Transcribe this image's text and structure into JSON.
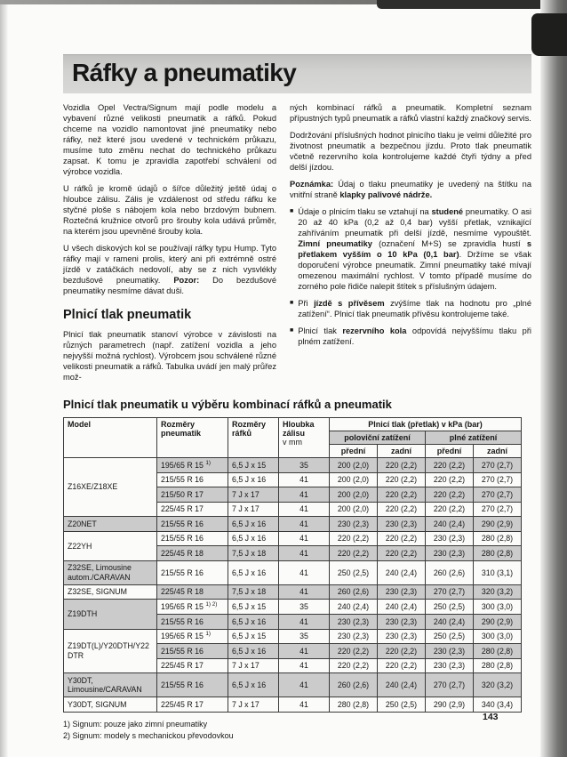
{
  "page": {
    "title": "Ráfky a pneumatiky",
    "page_number": "143"
  },
  "glyphs": {
    "bullet": "■"
  },
  "colors": {
    "row_shade": "#cbcbcb",
    "table_border": "#3a3a3a",
    "title_bar_bg": "#d2d2d0",
    "scan_edge_dark": "#1e1e1d"
  },
  "intro_left": {
    "p1": "Vozidla Opel Vectra/Signum mají podle modelu a vybavení různé velikosti pneumatik a ráfků. Pokud chceme na vozidlo namontovat jiné pneumatiky nebo ráfky, než které jsou uvedené v technickém průkazu, musíme tuto změnu nechat do technického průkazu zapsat. K tomu je zpravidla zapotřebí schválení od výrobce vozidla.",
    "p2": "U ráfků je kromě údajů o šířce důležitý ještě údaj o hloubce zálisu. Zális je vzdálenost od středu ráfku ke styčné ploše s nábojem kola nebo brzdovým bubnem. Roztečná kružnice otvorů pro šrouby kola udává průměr, na kterém jsou upevněné šrouby kola.",
    "p3_segments": [
      {
        "t": "U všech diskových kol se používají ráfky typu Hump. Tyto ráfky mají v rameni prolis, který ani při extrémně ostré jízdě v zatáčkách nedovolí, aby se z nich vysvlékly bezdušové pneumatiky. "
      },
      {
        "t": "Pozor:",
        "b": true
      },
      {
        "t": " Do bezdušové pneumatiky nesmíme dávat duši."
      }
    ],
    "heading2": "Plnicí tlak pneumatik",
    "p4": "Plnicí tlak pneumatik stanoví výrobce v závislosti na různých parametrech (např. zatížení vozidla a jeho nejvyšší možná rychlost). Výrobcem jsou schválené různé velikosti pneumatik a ráfků. Tabulka uvádí jen malý průřez mož-"
  },
  "intro_right": {
    "p5": "ných kombinací ráfků a pneumatik. Kompletní seznam přípustných typů pneumatik a ráfků vlastní každý značkový servis.",
    "p6": "Dodržování příslušných hodnot plnicího tlaku je velmi důležité pro životnost pneumatik a bezpečnou jízdu. Proto tlak pneumatik včetně rezervního kola kontrolujeme každé čtyři týdny a před delší jízdou.",
    "note_segments": [
      {
        "t": "Poznámka:",
        "b": true
      },
      {
        "t": " Údaj o tlaku pneumatiky je uvedený na štítku na vnitřní straně "
      },
      {
        "t": "klapky palivové nádrže.",
        "b": true
      }
    ],
    "bullets": [
      {
        "segments": [
          {
            "t": "Údaje o plnicím tlaku se vztahují na "
          },
          {
            "t": "studené",
            "b": true
          },
          {
            "t": " pneumatiky. O asi 20 až 40 kPa (0,2 až 0,4 bar) vyšší přetlak, vznikající zahříváním pneumatik při delší jízdě, nesmíme vypouštět. "
          },
          {
            "t": "Zimní pneumatiky",
            "b": true
          },
          {
            "t": " (označení M+S) se zpravidla hustí "
          },
          {
            "t": "s přetlakem vyšším o 10 kPa (0,1 bar)",
            "b": true
          },
          {
            "t": ". Držíme se však doporučení výrobce pneumatik. Zimní pneumatiky také mívají omezenou maximální rychlost. V tomto případě musíme do zorného pole řidiče nalepit štítek s příslušným údajem."
          }
        ]
      },
      {
        "segments": [
          {
            "t": "Při "
          },
          {
            "t": "jízdě s přívěsem",
            "b": true
          },
          {
            "t": " zvýšíme tlak na hodnotu pro „plné zatížení“. Plnicí tlak pneumatik přívěsu kontrolujeme také."
          }
        ]
      },
      {
        "segments": [
          {
            "t": "Plnicí tlak "
          },
          {
            "t": "rezervního kola",
            "b": true
          },
          {
            "t": " odpovídá nejvyššímu tlaku při plném zatížení."
          }
        ]
      }
    ]
  },
  "table": {
    "heading": "Plnicí tlak pneumatik u výběru kombinací ráfků a pneumatik",
    "headers": {
      "model": "Model",
      "tire": "Rozměry pneumatik",
      "rim": "Rozměry ráfků",
      "depth_l1": "Hloubka zálisu",
      "depth_l2": "v mm",
      "pressure": "Plnicí tlak (přetlak) v kPa (bar)",
      "half_load": "poloviční zatížení",
      "full_load": "plné zatížení",
      "front": "přední",
      "rear": "zadní"
    },
    "groups": [
      {
        "model": "Z16XE/Z18XE",
        "rows": [
          {
            "tire": "195/65 R 15",
            "note": "1)",
            "rim": "6,5 J x 15",
            "depth": "35",
            "half_front": "200 (2,0)",
            "half_rear": "220 (2,2)",
            "full_front": "220 (2,2)",
            "full_rear": "270 (2,7)"
          },
          {
            "tire": "215/55 R 16",
            "rim": "6,5 J x 16",
            "depth": "41",
            "half_front": "200 (2,0)",
            "half_rear": "220 (2,2)",
            "full_front": "220 (2,2)",
            "full_rear": "270 (2,7)"
          },
          {
            "tire": "215/50 R 17",
            "rim": "7 J x 17",
            "depth": "41",
            "half_front": "200 (2,0)",
            "half_rear": "220 (2,2)",
            "full_front": "220 (2,2)",
            "full_rear": "270 (2,7)"
          },
          {
            "tire": "225/45 R 17",
            "rim": "7 J x 17",
            "depth": "41",
            "half_front": "200 (2,0)",
            "half_rear": "220 (2,2)",
            "full_front": "220 (2,2)",
            "full_rear": "270 (2,7)"
          }
        ]
      },
      {
        "model": "Z20NET",
        "rows": [
          {
            "tire": "215/55 R 16",
            "rim": "6,5 J x 16",
            "depth": "41",
            "half_front": "230 (2,3)",
            "half_rear": "230 (2,3)",
            "full_front": "240 (2,4)",
            "full_rear": "290 (2,9)"
          }
        ]
      },
      {
        "model": "Z22YH",
        "rows": [
          {
            "tire": "215/55 R 16",
            "rim": "6,5 J x 16",
            "depth": "41",
            "half_front": "220 (2,2)",
            "half_rear": "220 (2,2)",
            "full_front": "230 (2,3)",
            "full_rear": "280 (2,8)"
          },
          {
            "tire": "225/45 R 18",
            "rim": "7,5 J x 18",
            "depth": "41",
            "half_front": "220 (2,2)",
            "half_rear": "220 (2,2)",
            "full_front": "230 (2,3)",
            "full_rear": "280 (2,8)"
          }
        ]
      },
      {
        "model": "Z32SE, Limousine autom./CARAVAN",
        "rows": [
          {
            "tire": "215/55 R 16",
            "rim": "6,5 J x 16",
            "depth": "41",
            "half_front": "250 (2,5)",
            "half_rear": "240 (2,4)",
            "full_front": "260 (2,6)",
            "full_rear": "310 (3,1)"
          }
        ]
      },
      {
        "model": "Z32SE, SIGNUM",
        "rows": [
          {
            "tire": "225/45 R 18",
            "rim": "7,5 J x 18",
            "depth": "41",
            "half_front": "260 (2,6)",
            "half_rear": "230 (2,3)",
            "full_front": "270 (2,7)",
            "full_rear": "320 (3,2)"
          }
        ]
      },
      {
        "model": "Z19DTH",
        "rows": [
          {
            "tire": "195/65 R 15",
            "note": "1) 2)",
            "rim": "6,5 J x 15",
            "depth": "35",
            "half_front": "240 (2,4)",
            "half_rear": "240 (2,4)",
            "full_front": "250 (2,5)",
            "full_rear": "300 (3,0)"
          },
          {
            "tire": "215/55 R 16",
            "rim": "6,5 J x 16",
            "depth": "41",
            "half_front": "230 (2,3)",
            "half_rear": "230 (2,3)",
            "full_front": "240 (2,4)",
            "full_rear": "290 (2,9)"
          }
        ]
      },
      {
        "model": "Z19DT(L)/Y20DTH/Y22DTR",
        "rows": [
          {
            "tire": "195/65 R 15",
            "note": "1)",
            "rim": "6,5 J x 15",
            "depth": "35",
            "half_front": "230 (2,3)",
            "half_rear": "230 (2,3)",
            "full_front": "250 (2,5)",
            "full_rear": "300 (3,0)"
          },
          {
            "tire": "215/55 R 16",
            "rim": "6,5 J x 16",
            "depth": "41",
            "half_front": "220 (2,2)",
            "half_rear": "220 (2,2)",
            "full_front": "230 (2,3)",
            "full_rear": "280 (2,8)"
          },
          {
            "tire": "225/45 R 17",
            "rim": "7 J x 17",
            "depth": "41",
            "half_front": "220 (2,2)",
            "half_rear": "220 (2,2)",
            "full_front": "230 (2,3)",
            "full_rear": "280 (2,8)"
          }
        ]
      },
      {
        "model": "Y30DT, Limousine/CARAVAN",
        "rows": [
          {
            "tire": "215/55 R 16",
            "rim": "6,5 J x 16",
            "depth": "41",
            "half_front": "260 (2,6)",
            "half_rear": "240 (2,4)",
            "full_front": "270 (2,7)",
            "full_rear": "320 (3,2)"
          }
        ]
      },
      {
        "model": "Y30DT, SIGNUM",
        "rows": [
          {
            "tire": "225/45 R 17",
            "rim": "7 J x 17",
            "depth": "41",
            "half_front": "280 (2,8)",
            "half_rear": "250 (2,5)",
            "full_front": "290 (2,9)",
            "full_rear": "340 (3,4)"
          }
        ]
      }
    ],
    "footnotes": [
      "1) Signum: pouze jako zimní pneumatiky",
      "2) Signum: modely s mechanickou převodovkou"
    ]
  }
}
